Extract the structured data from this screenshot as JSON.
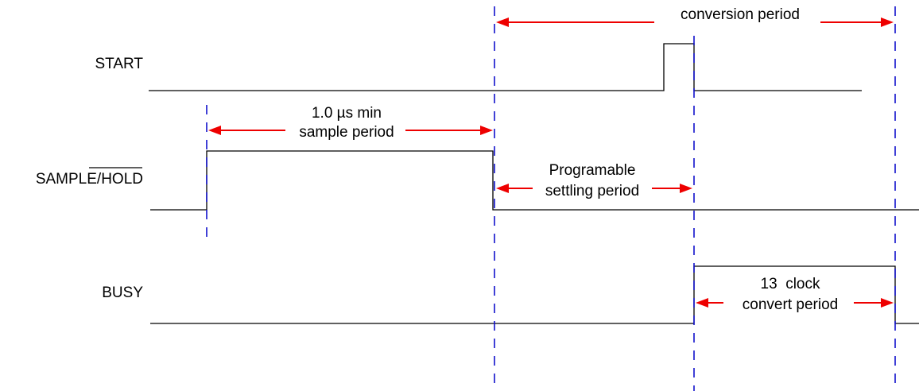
{
  "signals": {
    "start": "START",
    "sample_prefix": "SAMPLE/",
    "sample_overline": "HOLD",
    "busy": "BUSY"
  },
  "annotations": {
    "conversion_period": "conversion period",
    "sample_line1": "1.0 µs min",
    "sample_line2": "sample period",
    "settling_line1": "Programable",
    "settling_line2": "settling period",
    "convert_line1": "13  clock",
    "convert_line2": "convert period"
  },
  "colors": {
    "guide_lines": "#1111cc",
    "arrows": "#ee0000",
    "waveforms": "#000000"
  }
}
